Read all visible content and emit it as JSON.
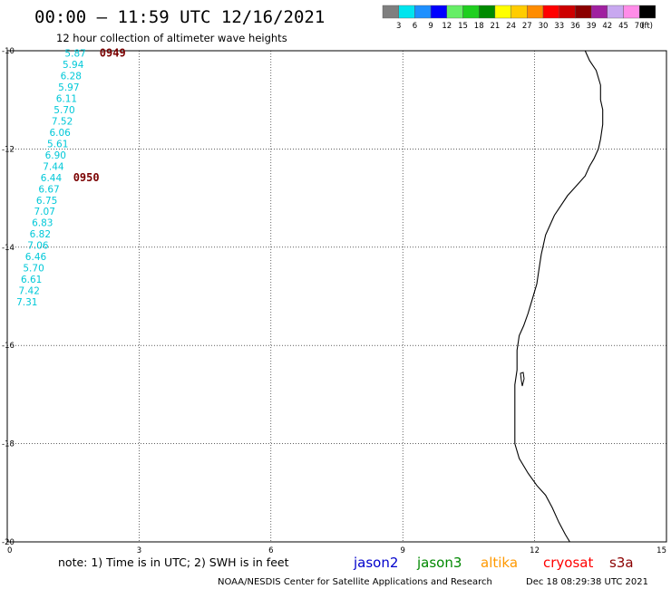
{
  "header": {
    "title": "00:00 – 11:59 UTC 12/16/2021",
    "subtitle": "12 hour collection of altimeter wave heights"
  },
  "legend": {
    "unit": "(ft)",
    "bins": [
      {
        "label": "3",
        "color": "#7f7f7f"
      },
      {
        "label": "6",
        "color": "#00e5ee"
      },
      {
        "label": "9",
        "color": "#1e90ff"
      },
      {
        "label": "12",
        "color": "#0000ff"
      },
      {
        "label": "15",
        "color": "#66ee66"
      },
      {
        "label": "18",
        "color": "#1fcf1f"
      },
      {
        "label": "21",
        "color": "#008b00"
      },
      {
        "label": "24",
        "color": "#ffff00"
      },
      {
        "label": "27",
        "color": "#ffcc00"
      },
      {
        "label": "30",
        "color": "#ff8c00"
      },
      {
        "label": "33",
        "color": "#ff0000"
      },
      {
        "label": "36",
        "color": "#cd0000"
      },
      {
        "label": "39",
        "color": "#8b0000"
      },
      {
        "label": "42",
        "color": "#a020a0"
      },
      {
        "label": "45",
        "color": "#c8a8f0"
      },
      {
        "label": "70",
        "color": "#ff8ce8"
      },
      {
        "label": "",
        "color": "#000000"
      }
    ]
  },
  "chart_data": {
    "type": "scatter",
    "xlim": [
      0,
      15
    ],
    "ylim": [
      -20,
      -10
    ],
    "x_ticks": [
      {
        "value": 0,
        "label": "0"
      },
      {
        "value": 3,
        "label": "3"
      },
      {
        "value": 6,
        "label": "6"
      },
      {
        "value": 9,
        "label": "9"
      },
      {
        "value": 12,
        "label": "12"
      },
      {
        "value": 15,
        "label": "15"
      }
    ],
    "y_ticks": [
      {
        "value": -10,
        "label": "-10"
      },
      {
        "value": -12,
        "label": "-12"
      },
      {
        "value": -14,
        "label": "-14"
      },
      {
        "value": -16,
        "label": "-16"
      },
      {
        "value": -18,
        "label": "-18"
      },
      {
        "value": -20,
        "label": "-20"
      }
    ],
    "swh_color": "#00c8d8",
    "time_color": "#7a0000",
    "coast_color": "#000000",
    "swh_points": [
      {
        "x": 1.55,
        "y": -10.05,
        "value": "5.87"
      },
      {
        "x": 1.5,
        "y": -10.28,
        "value": "5.94"
      },
      {
        "x": 1.45,
        "y": -10.51,
        "value": "6.28"
      },
      {
        "x": 1.4,
        "y": -10.74,
        "value": "5.97"
      },
      {
        "x": 1.35,
        "y": -10.97,
        "value": "6.11"
      },
      {
        "x": 1.3,
        "y": -11.2,
        "value": "5.70"
      },
      {
        "x": 1.25,
        "y": -11.43,
        "value": "7.52"
      },
      {
        "x": 1.2,
        "y": -11.66,
        "value": "6.06"
      },
      {
        "x": 1.15,
        "y": -11.89,
        "value": "5.61"
      },
      {
        "x": 1.1,
        "y": -12.12,
        "value": "6.90"
      },
      {
        "x": 1.05,
        "y": -12.35,
        "value": "7.44"
      },
      {
        "x": 1.0,
        "y": -12.58,
        "value": "6.44"
      },
      {
        "x": 0.95,
        "y": -12.81,
        "value": "6.67"
      },
      {
        "x": 0.9,
        "y": -13.04,
        "value": "6.75"
      },
      {
        "x": 0.85,
        "y": -13.27,
        "value": "7.07"
      },
      {
        "x": 0.8,
        "y": -13.5,
        "value": "6.83"
      },
      {
        "x": 0.75,
        "y": -13.73,
        "value": "6.82"
      },
      {
        "x": 0.7,
        "y": -13.96,
        "value": "7.06"
      },
      {
        "x": 0.65,
        "y": -14.19,
        "value": "6.46"
      },
      {
        "x": 0.6,
        "y": -14.42,
        "value": "5.70"
      },
      {
        "x": 0.55,
        "y": -14.65,
        "value": "6.61"
      },
      {
        "x": 0.5,
        "y": -14.88,
        "value": "7.42"
      },
      {
        "x": 0.45,
        "y": -15.11,
        "value": "7.31"
      }
    ],
    "time_labels": [
      {
        "x": 2.1,
        "y": -10.05,
        "text": "0949"
      },
      {
        "x": 1.5,
        "y": -12.58,
        "text": "0950"
      }
    ],
    "coastline": [
      [
        13.15,
        -10.0
      ],
      [
        13.25,
        -10.2
      ],
      [
        13.4,
        -10.4
      ],
      [
        13.5,
        -10.7
      ],
      [
        13.5,
        -11.0
      ],
      [
        13.55,
        -11.2
      ],
      [
        13.55,
        -11.5
      ],
      [
        13.5,
        -11.8
      ],
      [
        13.45,
        -12.0
      ],
      [
        13.35,
        -12.2
      ],
      [
        13.25,
        -12.35
      ],
      [
        13.15,
        -12.55
      ],
      [
        12.95,
        -12.75
      ],
      [
        12.75,
        -12.95
      ],
      [
        12.6,
        -13.15
      ],
      [
        12.45,
        -13.35
      ],
      [
        12.35,
        -13.55
      ],
      [
        12.25,
        -13.75
      ],
      [
        12.2,
        -13.95
      ],
      [
        12.15,
        -14.15
      ],
      [
        12.1,
        -14.45
      ],
      [
        12.05,
        -14.75
      ],
      [
        11.95,
        -15.05
      ],
      [
        11.85,
        -15.35
      ],
      [
        11.75,
        -15.6
      ],
      [
        11.65,
        -15.8
      ],
      [
        11.6,
        -16.1
      ],
      [
        11.6,
        -16.5
      ],
      [
        11.55,
        -16.8
      ],
      [
        11.55,
        -17.2
      ],
      [
        11.55,
        -17.6
      ],
      [
        11.55,
        -18.0
      ],
      [
        11.65,
        -18.3
      ],
      [
        11.85,
        -18.6
      ],
      [
        12.05,
        -18.85
      ],
      [
        12.25,
        -19.05
      ],
      [
        12.4,
        -19.3
      ],
      [
        12.55,
        -19.6
      ],
      [
        12.7,
        -19.85
      ],
      [
        12.8,
        -20.0
      ]
    ]
  },
  "notes": {
    "text": "note:  1) Time is in UTC;  2) SWH is in feet"
  },
  "satellites": [
    {
      "name": "jason2",
      "color": "#0000cc"
    },
    {
      "name": "jason3",
      "color": "#008800"
    },
    {
      "name": "altika",
      "color": "#ff9900"
    },
    {
      "name": "cryosat",
      "color": "#ff0000"
    },
    {
      "name": "s3a",
      "color": "#8b0000"
    }
  ],
  "footer": {
    "source": "NOAA/NESDIS Center for Satellite Applications and Research",
    "timestamp": "Dec 18 08:29:38 UTC 2021"
  }
}
